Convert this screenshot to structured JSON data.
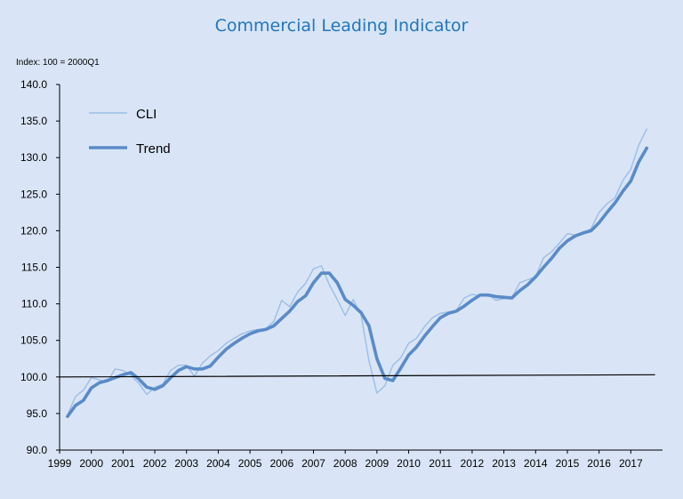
{
  "title": "Commercial Leading Indicator",
  "colors": {
    "background": "#d9e5f6",
    "title": "#2176c0",
    "cli": "#9bbde6",
    "trend": "#5a8bc8",
    "baseline": "#000000"
  },
  "chart_data": {
    "type": "line",
    "title": "Commercial Leading Indicator",
    "ylabel": "Index: 100 = 2000Q1",
    "xlabel": "",
    "ylim": [
      90,
      140
    ],
    "xlim": [
      1999,
      2018
    ],
    "yticks": [
      "90.0",
      "95.0",
      "100.0",
      "105.0",
      "110.0",
      "115.0",
      "120.0",
      "125.0",
      "130.0",
      "135.0",
      "140.0"
    ],
    "xticks": [
      "1999",
      "2000",
      "2001",
      "2002",
      "2003",
      "2004",
      "2005",
      "2006",
      "2007",
      "2008",
      "2009",
      "2010",
      "2011",
      "2012",
      "2013",
      "2014",
      "2015",
      "2016",
      "2017"
    ],
    "legend_position": "top-left",
    "grid": false,
    "series": [
      {
        "name": "CLI",
        "x": [
          1999.25,
          1999.5,
          1999.75,
          2000.0,
          2000.25,
          2000.5,
          2000.75,
          2001.0,
          2001.25,
          2001.5,
          2001.75,
          2002.0,
          2002.25,
          2002.5,
          2002.75,
          2003.0,
          2003.25,
          2003.5,
          2003.75,
          2004.0,
          2004.25,
          2004.5,
          2004.75,
          2005.0,
          2005.25,
          2005.5,
          2005.75,
          2006.0,
          2006.25,
          2006.5,
          2006.75,
          2007.0,
          2007.25,
          2007.5,
          2007.75,
          2008.0,
          2008.25,
          2008.5,
          2008.75,
          2009.0,
          2009.25,
          2009.5,
          2009.75,
          2010.0,
          2010.25,
          2010.5,
          2010.75,
          2011.0,
          2011.25,
          2011.5,
          2011.75,
          2012.0,
          2012.25,
          2012.5,
          2012.75,
          2013.0,
          2013.25,
          2013.5,
          2013.75,
          2014.0,
          2014.25,
          2014.5,
          2014.75,
          2015.0,
          2015.25,
          2015.5,
          2015.75,
          2016.0,
          2016.25,
          2016.5,
          2016.75,
          2017.0,
          2017.25,
          2017.5
        ],
        "y": [
          94.8,
          97.3,
          98.2,
          99.9,
          99.6,
          99.3,
          101.1,
          100.9,
          100.2,
          99.1,
          97.6,
          98.6,
          99.0,
          100.9,
          101.6,
          101.6,
          100.1,
          101.9,
          102.9,
          103.6,
          104.6,
          105.3,
          105.9,
          106.3,
          106.5,
          106.6,
          107.6,
          110.5,
          109.6,
          111.6,
          112.8,
          114.8,
          115.2,
          112.6,
          110.6,
          108.4,
          110.6,
          108.5,
          102.2,
          97.8,
          98.8,
          101.6,
          102.6,
          104.6,
          105.3,
          106.9,
          108.1,
          108.7,
          108.9,
          109.1,
          110.8,
          111.3,
          111.1,
          111.3,
          110.5,
          110.7,
          110.8,
          112.9,
          113.3,
          113.7,
          116.3,
          117.1,
          118.3,
          119.6,
          119.4,
          119.6,
          120.3,
          122.5,
          123.7,
          124.5,
          126.9,
          128.4,
          131.7,
          133.9
        ]
      },
      {
        "name": "Trend",
        "x": [
          1999.25,
          1999.5,
          1999.75,
          2000.0,
          2000.25,
          2000.5,
          2000.75,
          2001.0,
          2001.25,
          2001.5,
          2001.75,
          2002.0,
          2002.25,
          2002.5,
          2002.75,
          2003.0,
          2003.25,
          2003.5,
          2003.75,
          2004.0,
          2004.25,
          2004.5,
          2004.75,
          2005.0,
          2005.25,
          2005.5,
          2005.75,
          2006.0,
          2006.25,
          2006.5,
          2006.75,
          2007.0,
          2007.25,
          2007.5,
          2007.75,
          2008.0,
          2008.25,
          2008.5,
          2008.75,
          2009.0,
          2009.25,
          2009.5,
          2009.75,
          2010.0,
          2010.25,
          2010.5,
          2010.75,
          2011.0,
          2011.25,
          2011.5,
          2011.75,
          2012.0,
          2012.25,
          2012.5,
          2012.75,
          2013.0,
          2013.25,
          2013.5,
          2013.75,
          2014.0,
          2014.25,
          2014.5,
          2014.75,
          2015.0,
          2015.25,
          2015.5,
          2015.75,
          2016.0,
          2016.25,
          2016.5,
          2016.75,
          2017.0,
          2017.25,
          2017.5
        ],
        "y": [
          94.6,
          96.1,
          96.8,
          98.5,
          99.2,
          99.5,
          99.9,
          100.3,
          100.6,
          99.7,
          98.6,
          98.3,
          98.8,
          99.9,
          100.9,
          101.4,
          101.1,
          101.1,
          101.5,
          102.7,
          103.8,
          104.6,
          105.3,
          105.9,
          106.3,
          106.5,
          107.0,
          108.0,
          109.0,
          110.3,
          111.1,
          112.9,
          114.2,
          114.2,
          112.9,
          110.6,
          109.8,
          108.8,
          107.0,
          102.5,
          99.8,
          99.5,
          101.2,
          103.0,
          104.1,
          105.6,
          106.9,
          108.1,
          108.7,
          109.0,
          109.7,
          110.5,
          111.2,
          111.2,
          111.0,
          110.9,
          110.8,
          111.8,
          112.6,
          113.7,
          115.0,
          116.2,
          117.6,
          118.6,
          119.3,
          119.7,
          120.0,
          121.1,
          122.5,
          123.8,
          125.4,
          126.8,
          129.4,
          131.3
        ]
      },
      {
        "name": "",
        "x": [
          1999.0,
          2017.75
        ],
        "y": [
          100.0,
          100.3
        ]
      }
    ]
  }
}
